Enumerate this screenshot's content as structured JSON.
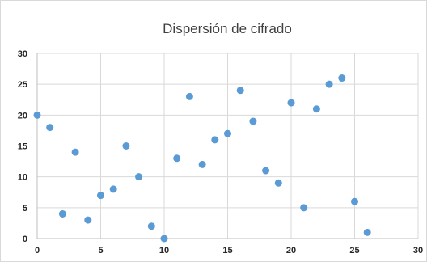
{
  "chart_data": {
    "type": "scatter",
    "title": "Dispersión de cifrado",
    "xlabel": "",
    "ylabel": "",
    "xlim": [
      0,
      30
    ],
    "ylim": [
      0,
      30
    ],
    "x_ticks": [
      0,
      5,
      10,
      15,
      20,
      25,
      30
    ],
    "y_ticks": [
      0,
      5,
      10,
      15,
      20,
      25,
      30
    ],
    "grid": true,
    "legend": "none",
    "marker_color": "#5b9bd5",
    "points": [
      {
        "x": 0,
        "y": 20
      },
      {
        "x": 1,
        "y": 18
      },
      {
        "x": 2,
        "y": 4
      },
      {
        "x": 3,
        "y": 14
      },
      {
        "x": 4,
        "y": 3
      },
      {
        "x": 5,
        "y": 7
      },
      {
        "x": 6,
        "y": 8
      },
      {
        "x": 7,
        "y": 15
      },
      {
        "x": 8,
        "y": 10
      },
      {
        "x": 9,
        "y": 2
      },
      {
        "x": 10,
        "y": 0
      },
      {
        "x": 11,
        "y": 13
      },
      {
        "x": 12,
        "y": 23
      },
      {
        "x": 13,
        "y": 12
      },
      {
        "x": 14,
        "y": 16
      },
      {
        "x": 15,
        "y": 17
      },
      {
        "x": 16,
        "y": 24
      },
      {
        "x": 17,
        "y": 19
      },
      {
        "x": 18,
        "y": 11
      },
      {
        "x": 19,
        "y": 9
      },
      {
        "x": 20,
        "y": 22
      },
      {
        "x": 21,
        "y": 5
      },
      {
        "x": 22,
        "y": 21
      },
      {
        "x": 23,
        "y": 25
      },
      {
        "x": 24,
        "y": 26
      },
      {
        "x": 25,
        "y": 6
      },
      {
        "x": 26,
        "y": 1
      }
    ]
  }
}
